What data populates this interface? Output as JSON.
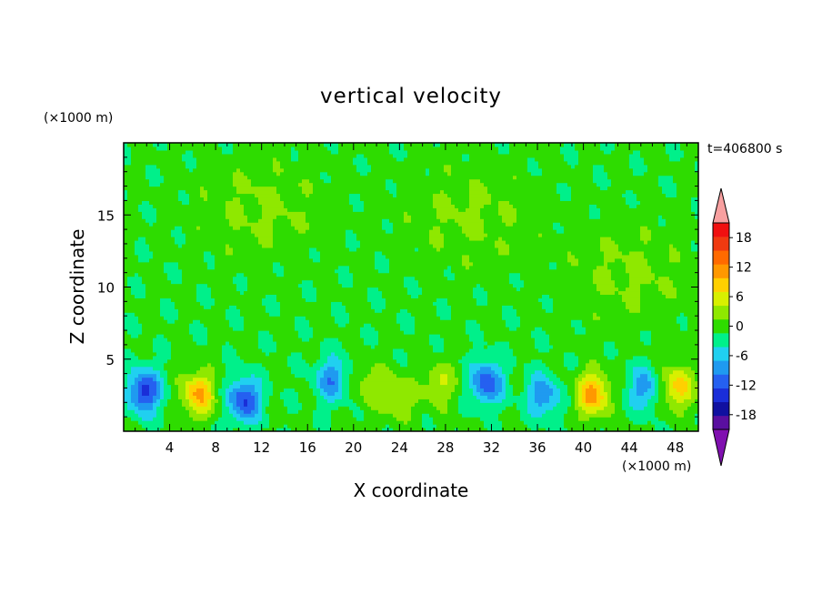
{
  "chart_data": {
    "type": "heatmap",
    "title": "vertical velocity",
    "xlabel": "X coordinate",
    "ylabel": "Z coordinate",
    "x_unit": "(×1000 m)",
    "y_unit": "(×1000 m)",
    "time_label": "t=406800 s",
    "xlim": [
      0,
      50
    ],
    "ylim": [
      0,
      20
    ],
    "x_ticks": [
      4,
      8,
      12,
      16,
      20,
      24,
      28,
      32,
      36,
      40,
      44,
      48
    ],
    "y_ticks": [
      5,
      10,
      15
    ],
    "colorbar": {
      "levels": [
        -21,
        -18,
        -15,
        -12,
        -9,
        -6,
        -3,
        0,
        3,
        6,
        9,
        12,
        15,
        18,
        21
      ],
      "tick_labels": [
        "18",
        "12",
        "6",
        "0",
        "-6",
        "-12",
        "-18"
      ],
      "colors": [
        "#5a0fa0",
        "#1010a0",
        "#1a2ed8",
        "#2560f0",
        "#1f9af0",
        "#20d0f0",
        "#00f08a",
        "#2edc00",
        "#8fe800",
        "#d8f000",
        "#ffd000",
        "#ff9800",
        "#ff6a00",
        "#f03a10",
        "#f01010"
      ],
      "under_color": "#8010b0",
      "over_color": "#f8a0a0"
    },
    "background_value": 0.5,
    "features": [
      {
        "x": 1.8,
        "z": 2.8,
        "value": -14
      },
      {
        "x": 6.5,
        "z": 2.6,
        "value": 12
      },
      {
        "x": 10.5,
        "z": 2.2,
        "value": -13
      },
      {
        "x": 18.1,
        "z": 3.6,
        "value": -9
      },
      {
        "x": 21.5,
        "z": 3.2,
        "value": 5
      },
      {
        "x": 24.0,
        "z": 2.4,
        "value": 6
      },
      {
        "x": 27.5,
        "z": 3.3,
        "value": 6
      },
      {
        "x": 31.6,
        "z": 3.4,
        "value": -12
      },
      {
        "x": 36.5,
        "z": 2.5,
        "value": -9
      },
      {
        "x": 40.8,
        "z": 2.6,
        "value": 13
      },
      {
        "x": 45.3,
        "z": 3.0,
        "value": -8
      },
      {
        "x": 48.2,
        "z": 3.1,
        "value": 10
      },
      {
        "x": 30.0,
        "z": 15.0,
        "value": 3
      },
      {
        "x": 12.0,
        "z": 15.5,
        "value": 3
      },
      {
        "x": 44.0,
        "z": 11.0,
        "value": 3
      }
    ]
  }
}
